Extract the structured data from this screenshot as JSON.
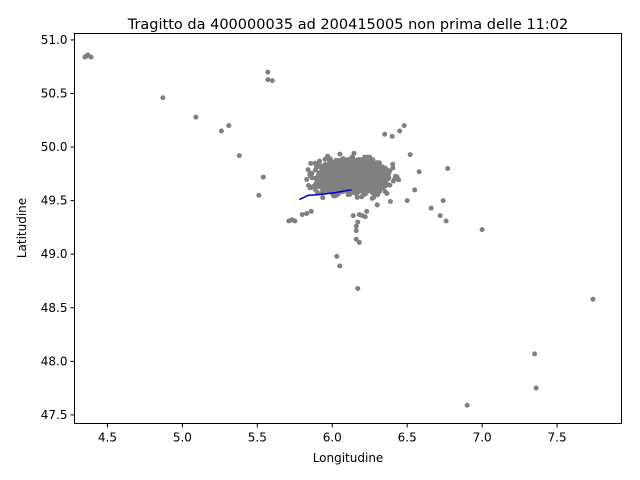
{
  "chart_data": {
    "type": "scatter",
    "title": "Tragitto da 400000035 ad 200415005 non prima delle 11:02",
    "xlabel": "Longitudine",
    "ylabel": "Latitudine",
    "xlim": [
      4.28,
      7.93
    ],
    "ylim": [
      47.42,
      51.06
    ],
    "xticks": [
      4.5,
      5.0,
      5.5,
      6.0,
      6.5,
      7.0,
      7.5
    ],
    "yticks": [
      47.5,
      48.0,
      48.5,
      49.0,
      49.5,
      50.0,
      50.5,
      51.0
    ],
    "xtick_labels": [
      "4.5",
      "5.0",
      "5.5",
      "6.0",
      "6.5",
      "7.0",
      "7.5"
    ],
    "ytick_labels": [
      "47.5",
      "48.0",
      "48.5",
      "49.0",
      "49.5",
      "50.0",
      "50.5",
      "51.0"
    ],
    "grid": false,
    "point_color": "#808080",
    "route_color": "#0000cc",
    "series": [
      {
        "points": [
          [
            4.35,
            50.84
          ],
          [
            4.37,
            50.86
          ],
          [
            4.39,
            50.84
          ],
          [
            4.36,
            50.85
          ],
          [
            4.87,
            50.46
          ],
          [
            5.09,
            50.28
          ],
          [
            5.26,
            50.15
          ],
          [
            5.31,
            50.2
          ],
          [
            5.38,
            49.92
          ],
          [
            5.57,
            50.7
          ],
          [
            5.57,
            50.63
          ],
          [
            5.6,
            50.62
          ],
          [
            5.51,
            49.55
          ],
          [
            5.54,
            49.72
          ],
          [
            5.71,
            49.31
          ],
          [
            5.73,
            49.32
          ],
          [
            5.75,
            49.31
          ],
          [
            5.8,
            49.37
          ],
          [
            5.83,
            49.38
          ],
          [
            5.86,
            49.4
          ],
          [
            6.03,
            48.98
          ],
          [
            6.05,
            48.89
          ],
          [
            6.17,
            48.68
          ],
          [
            6.16,
            49.22
          ],
          [
            6.16,
            49.26
          ],
          [
            6.16,
            49.14
          ],
          [
            6.18,
            49.11
          ],
          [
            6.17,
            49.3
          ],
          [
            6.14,
            49.36
          ],
          [
            6.18,
            49.37
          ],
          [
            6.2,
            49.36
          ],
          [
            6.22,
            49.35
          ],
          [
            6.23,
            49.4
          ],
          [
            6.66,
            49.43
          ],
          [
            6.72,
            49.36
          ],
          [
            6.74,
            49.5
          ],
          [
            6.76,
            49.31
          ],
          [
            6.77,
            49.8
          ],
          [
            7.0,
            49.23
          ],
          [
            7.74,
            48.58
          ],
          [
            7.35,
            48.07
          ],
          [
            7.36,
            47.75
          ],
          [
            6.9,
            47.59
          ],
          [
            6.3,
            49.46
          ],
          [
            6.5,
            49.5
          ],
          [
            6.55,
            49.6
          ],
          [
            6.58,
            49.77
          ],
          [
            6.52,
            49.93
          ],
          [
            6.45,
            50.15
          ],
          [
            6.48,
            50.2
          ],
          [
            6.4,
            50.1
          ],
          [
            6.35,
            50.12
          ]
        ]
      },
      {
        "route": [
          [
            5.78,
            49.51
          ],
          [
            5.81,
            49.53
          ],
          [
            5.84,
            49.55
          ],
          [
            5.9,
            49.555
          ],
          [
            5.96,
            49.565
          ],
          [
            6.02,
            49.575
          ],
          [
            6.08,
            49.59
          ],
          [
            6.13,
            49.6
          ]
        ]
      }
    ]
  }
}
